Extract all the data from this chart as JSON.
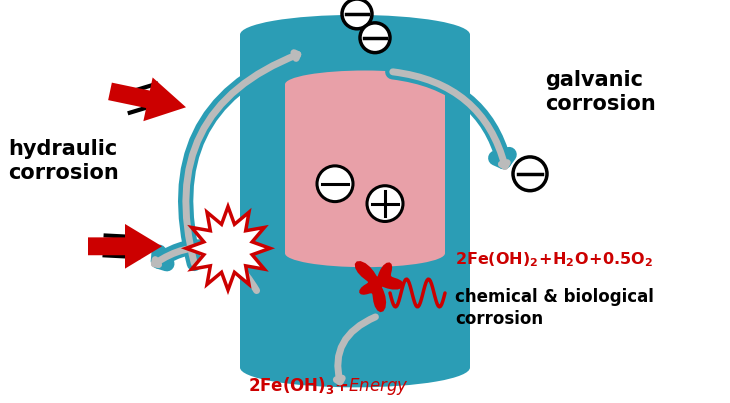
{
  "bg_color": "#ffffff",
  "teal": "#2B9DB5",
  "pink": "#E8A0A8",
  "red": "#CC0000",
  "black": "#000000",
  "gray_inner": "#C8C8C8",
  "text_hydraulic": "hydraulic\ncorrosion",
  "text_galvanic": "galvanic\ncorrosion",
  "text_chemical": "chemical & biological\ncorrosion",
  "figw": 7.3,
  "figh": 4.03,
  "dpi": 100
}
